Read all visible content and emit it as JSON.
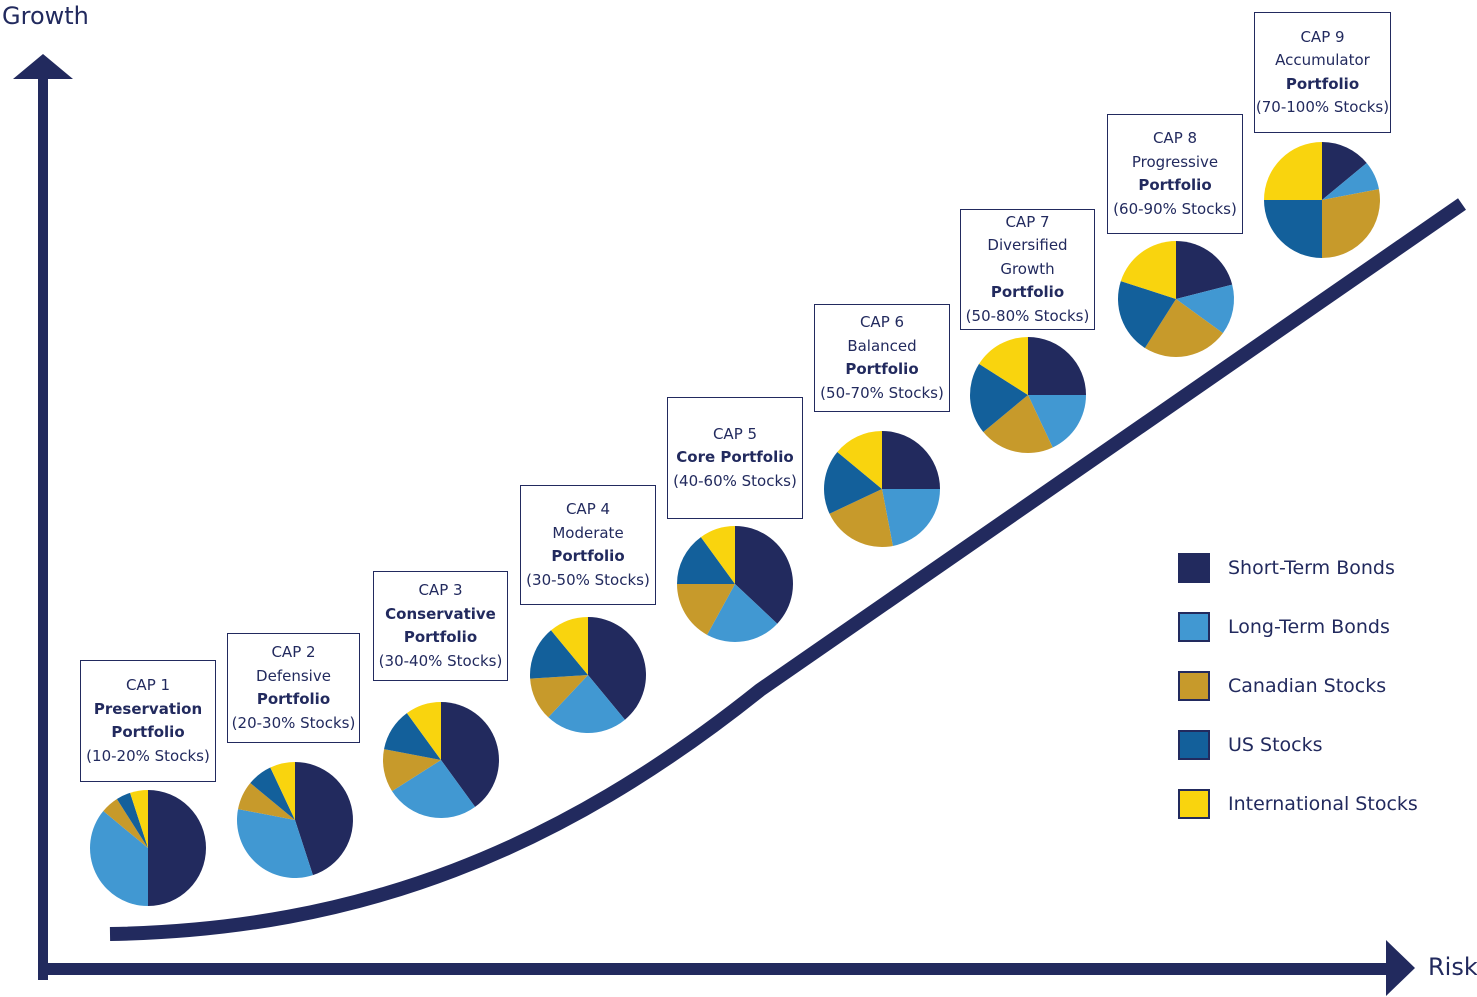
{
  "axes": {
    "y_label": "Growth",
    "x_label": "Risk"
  },
  "colors": {
    "axis": "#222a5e",
    "short_term_bonds": "#222a5e",
    "long_term_bonds": "#4198d2",
    "canadian_stocks": "#c79a2b",
    "us_stocks": "#13609b",
    "international_stocks": "#f9d40e"
  },
  "legend": [
    {
      "label": "Short-Term Bonds",
      "color": "#222a5e"
    },
    {
      "label": "Long-Term Bonds",
      "color": "#4198d2"
    },
    {
      "label": "Canadian Stocks",
      "color": "#c79a2b"
    },
    {
      "label": "US Stocks",
      "color": "#13609b"
    },
    {
      "label": "International Stocks",
      "color": "#f9d40e"
    }
  ],
  "portfolios": [
    {
      "lines": [
        {
          "t": "CAP 1"
        },
        {
          "t": "Preservation",
          "b": true
        },
        {
          "t": "Portfolio",
          "b": true
        },
        {
          "t": "(10-20% Stocks)"
        }
      ]
    },
    {
      "lines": [
        {
          "t": "CAP 2"
        },
        {
          "t": "Defensive"
        },
        {
          "t": "Portfolio",
          "b": true
        },
        {
          "t": "(20-30% Stocks)"
        }
      ]
    },
    {
      "lines": [
        {
          "t": "CAP 3"
        },
        {
          "t": "Conservative",
          "b": true
        },
        {
          "t": "Portfolio",
          "b": true
        },
        {
          "t": "(30-40% Stocks)"
        }
      ]
    },
    {
      "lines": [
        {
          "t": "CAP 4"
        },
        {
          "t": "Moderate"
        },
        {
          "t": "Portfolio",
          "b": true
        },
        {
          "t": "(30-50% Stocks)"
        }
      ]
    },
    {
      "lines": [
        {
          "t": "CAP 5"
        },
        {
          "t": "Core Portfolio",
          "b": true
        },
        {
          "t": "(40-60% Stocks)"
        }
      ]
    },
    {
      "lines": [
        {
          "t": "CAP 6"
        },
        {
          "t": "Balanced"
        },
        {
          "t": "Portfolio",
          "b": true
        },
        {
          "t": "(50-70% Stocks)"
        }
      ]
    },
    {
      "lines": [
        {
          "t": "CAP 7"
        },
        {
          "t": "Diversified"
        },
        {
          "t": "Growth"
        },
        {
          "t": "Portfolio",
          "b": true
        },
        {
          "t": "(50-80% Stocks)"
        }
      ]
    },
    {
      "lines": [
        {
          "t": "CAP 8"
        },
        {
          "t": "Progressive"
        },
        {
          "t": "Portfolio",
          "b": true
        },
        {
          "t": "(60-90% Stocks)"
        }
      ]
    },
    {
      "lines": [
        {
          "t": "CAP 9"
        },
        {
          "t": "Accumulator"
        },
        {
          "t": "Portfolio",
          "b": true
        },
        {
          "t": "(70-100% Stocks)"
        }
      ]
    }
  ],
  "chart_data": {
    "type": "pie",
    "series_names": [
      "Short-Term Bonds",
      "Long-Term Bonds",
      "Canadian Stocks",
      "US Stocks",
      "International Stocks"
    ],
    "pies": [
      {
        "portfolio": "CAP 1",
        "values": [
          50,
          36,
          5,
          4,
          5
        ]
      },
      {
        "portfolio": "CAP 2",
        "values": [
          45,
          33,
          8,
          7,
          7
        ]
      },
      {
        "portfolio": "CAP 3",
        "values": [
          40,
          26,
          12,
          12,
          10
        ]
      },
      {
        "portfolio": "CAP 4",
        "values": [
          39,
          23,
          12,
          15,
          11
        ]
      },
      {
        "portfolio": "CAP 5",
        "values": [
          37,
          21,
          17,
          15,
          10
        ]
      },
      {
        "portfolio": "CAP 6",
        "values": [
          25,
          22,
          21,
          18,
          14
        ]
      },
      {
        "portfolio": "CAP 7",
        "values": [
          25,
          18,
          21,
          20,
          16
        ]
      },
      {
        "portfolio": "CAP 8",
        "values": [
          21,
          14,
          24,
          21,
          20
        ]
      },
      {
        "portfolio": "CAP 9",
        "values": [
          14,
          8,
          28,
          25,
          25
        ]
      }
    ]
  }
}
